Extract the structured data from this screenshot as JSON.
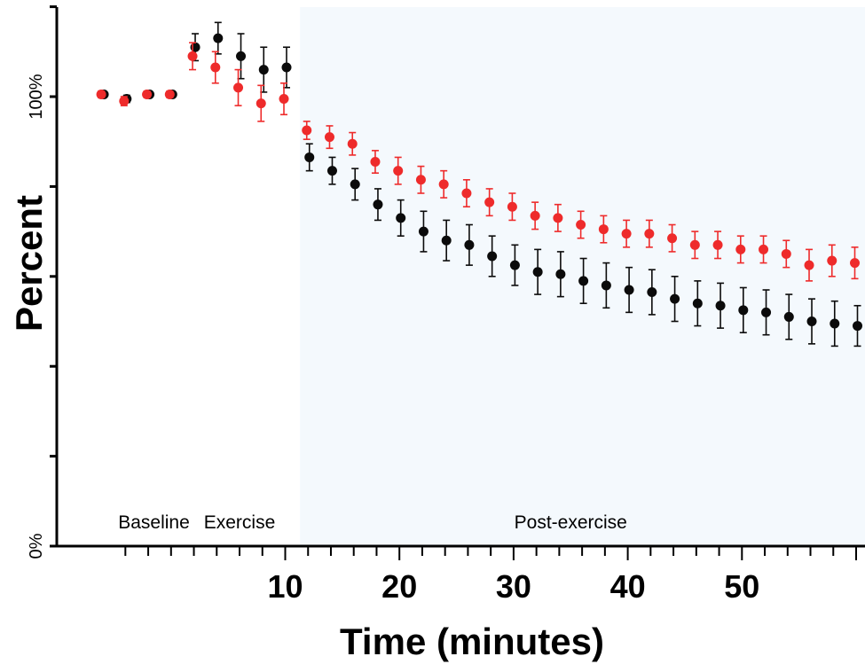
{
  "chart_data": {
    "type": "scatter",
    "title": "",
    "xlabel": "Time (minutes)",
    "ylabel": "Percent",
    "x_tick_labels": [
      "10",
      "20",
      "30",
      "40",
      "50"
    ],
    "x_tick_values": [
      10,
      20,
      30,
      40,
      50
    ],
    "y_tick_labels": [
      "0%",
      "100%"
    ],
    "y_tick_values": [
      0,
      100
    ],
    "x_range": [
      -4.5,
      60.5
    ],
    "y_range": [
      0,
      120
    ],
    "grid": false,
    "legend": "none",
    "phases": [
      {
        "label": "Baseline",
        "x_center": -1.5
      },
      {
        "label": "Exercise",
        "x_center": 6
      },
      {
        "label": "Post-exercise",
        "x_center": 35,
        "shaded_from": 11.3,
        "shaded_to": 60.5,
        "shade_color": "#f4f9fd"
      }
    ],
    "series": [
      {
        "color": "#0b0b0b",
        "points": [
          {
            "x": -6,
            "y": 100.5,
            "err": 0.5
          },
          {
            "x": -4,
            "y": 99.5,
            "err": 0.8
          },
          {
            "x": -2,
            "y": 100.5,
            "err": 0.5
          },
          {
            "x": 0,
            "y": 100.5,
            "err": 0.5
          },
          {
            "x": 2,
            "y": 111,
            "err": 3
          },
          {
            "x": 4,
            "y": 113,
            "err": 3.5
          },
          {
            "x": 6,
            "y": 109,
            "err": 5
          },
          {
            "x": 8,
            "y": 106,
            "err": 5
          },
          {
            "x": 10,
            "y": 106.5,
            "err": 4.5
          },
          {
            "x": 12,
            "y": 86.5,
            "err": 3
          },
          {
            "x": 14,
            "y": 83.5,
            "err": 3
          },
          {
            "x": 16,
            "y": 80.5,
            "err": 3.5
          },
          {
            "x": 18,
            "y": 76,
            "err": 3.5
          },
          {
            "x": 20,
            "y": 73,
            "err": 4
          },
          {
            "x": 22,
            "y": 70,
            "err": 4.5
          },
          {
            "x": 24,
            "y": 68,
            "err": 4.5
          },
          {
            "x": 26,
            "y": 67,
            "err": 4.5
          },
          {
            "x": 28,
            "y": 64.5,
            "err": 4.5
          },
          {
            "x": 30,
            "y": 62.5,
            "err": 4.5
          },
          {
            "x": 32,
            "y": 61,
            "err": 5
          },
          {
            "x": 34,
            "y": 60.5,
            "err": 5
          },
          {
            "x": 36,
            "y": 59,
            "err": 5
          },
          {
            "x": 38,
            "y": 58,
            "err": 5
          },
          {
            "x": 40,
            "y": 57,
            "err": 5
          },
          {
            "x": 42,
            "y": 56.5,
            "err": 5
          },
          {
            "x": 44,
            "y": 55,
            "err": 5
          },
          {
            "x": 46,
            "y": 54,
            "err": 5
          },
          {
            "x": 48,
            "y": 53.5,
            "err": 5
          },
          {
            "x": 50,
            "y": 52.5,
            "err": 5
          },
          {
            "x": 52,
            "y": 52,
            "err": 5
          },
          {
            "x": 54,
            "y": 51,
            "err": 5
          },
          {
            "x": 56,
            "y": 50,
            "err": 5
          },
          {
            "x": 58,
            "y": 49.5,
            "err": 5
          },
          {
            "x": 60,
            "y": 49,
            "err": 4.5
          }
        ]
      },
      {
        "color": "#ee2b2b",
        "points": [
          {
            "x": -6,
            "y": 100.5,
            "err": 0.7
          },
          {
            "x": -4,
            "y": 99,
            "err": 1
          },
          {
            "x": -2,
            "y": 100.5,
            "err": 0.7
          },
          {
            "x": 0,
            "y": 100.5,
            "err": 0.7
          },
          {
            "x": 2,
            "y": 109,
            "err": 3
          },
          {
            "x": 4,
            "y": 106.5,
            "err": 3.5
          },
          {
            "x": 6,
            "y": 102,
            "err": 4
          },
          {
            "x": 8,
            "y": 98.5,
            "err": 4
          },
          {
            "x": 10,
            "y": 99.5,
            "err": 3.5
          },
          {
            "x": 12,
            "y": 92.5,
            "err": 2
          },
          {
            "x": 14,
            "y": 91,
            "err": 2.5
          },
          {
            "x": 16,
            "y": 89.5,
            "err": 2.5
          },
          {
            "x": 18,
            "y": 85.5,
            "err": 2.5
          },
          {
            "x": 20,
            "y": 83.5,
            "err": 3
          },
          {
            "x": 22,
            "y": 81.5,
            "err": 3
          },
          {
            "x": 24,
            "y": 80.5,
            "err": 3
          },
          {
            "x": 26,
            "y": 78.5,
            "err": 3
          },
          {
            "x": 28,
            "y": 76.5,
            "err": 3
          },
          {
            "x": 30,
            "y": 75.5,
            "err": 3
          },
          {
            "x": 32,
            "y": 73.5,
            "err": 3
          },
          {
            "x": 34,
            "y": 73,
            "err": 3
          },
          {
            "x": 36,
            "y": 71.5,
            "err": 3
          },
          {
            "x": 38,
            "y": 70.5,
            "err": 3
          },
          {
            "x": 40,
            "y": 69.5,
            "err": 3
          },
          {
            "x": 42,
            "y": 69.5,
            "err": 3
          },
          {
            "x": 44,
            "y": 68.5,
            "err": 3
          },
          {
            "x": 46,
            "y": 67,
            "err": 3
          },
          {
            "x": 48,
            "y": 67,
            "err": 3
          },
          {
            "x": 50,
            "y": 66,
            "err": 3
          },
          {
            "x": 52,
            "y": 66,
            "err": 3
          },
          {
            "x": 54,
            "y": 65,
            "err": 3
          },
          {
            "x": 56,
            "y": 62.5,
            "err": 3.5
          },
          {
            "x": 58,
            "y": 63.5,
            "err": 3.5
          },
          {
            "x": 60,
            "y": 63,
            "err": 3.5
          }
        ]
      }
    ]
  }
}
